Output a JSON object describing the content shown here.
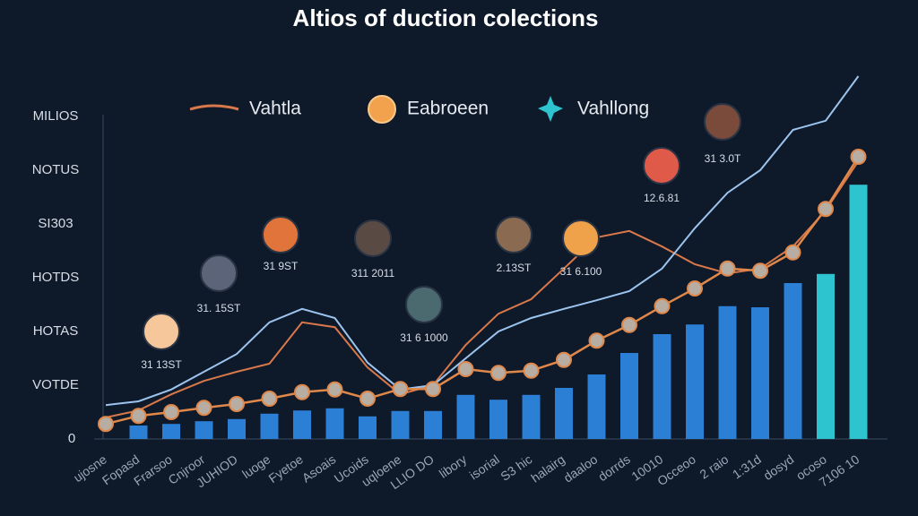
{
  "chart_data": {
    "type": "combo",
    "title": "Altios of duction colections",
    "categories": [
      "ujosne",
      "Fopasd",
      "Frarsoo",
      "Cnjroor",
      "JUHIOD",
      "luoge",
      "Fyetoe",
      "Asoais",
      "Ucoids",
      "uqloene",
      "LLIO DO",
      "libory",
      "isorial",
      "S3 hic",
      "halairg",
      "daaloo",
      "dorrds",
      "10010",
      "Occeoo",
      "2 raio",
      "1:31d",
      "dosyd",
      "ocoso",
      "7106 10"
    ],
    "ylim": [
      0,
      7
    ],
    "yticks": [
      0,
      {
        "value": 1,
        "label": "VOTDE"
      },
      {
        "value": 2,
        "label": "HOTAS"
      },
      {
        "value": 3,
        "label": "HOTDS"
      },
      {
        "value": 4,
        "label": "SI303"
      },
      {
        "value": 5,
        "label": "NOTUS"
      },
      {
        "value": 6,
        "label": "MILIOS"
      }
    ],
    "series": [
      {
        "name": "Vahllong",
        "kind": "bar",
        "color": "#2b7fd4",
        "colors": [
          "#2b7fd4",
          "#2b7fd4",
          "#2b7fd4",
          "#2b7fd4",
          "#2b7fd4",
          "#2b7fd4",
          "#2b7fd4",
          "#2b7fd4",
          "#2b7fd4",
          "#2b7fd4",
          "#2b7fd4",
          "#2b7fd4",
          "#2b7fd4",
          "#2b7fd4",
          "#2b7fd4",
          "#2b7fd4",
          "#2b7fd4",
          "#2b7fd4",
          "#2b7fd4",
          "#2b7fd4",
          "#2b7fd4",
          "#2b7fd4",
          "#2ec4cf",
          "#2ec4cf"
        ],
        "values": [
          null,
          0.25,
          0.28,
          0.33,
          0.37,
          0.47,
          0.53,
          0.57,
          0.42,
          0.52,
          0.52,
          0.82,
          0.73,
          0.82,
          0.95,
          1.2,
          1.6,
          1.95,
          2.13,
          2.47,
          2.45,
          2.9,
          3.07,
          4.73
        ]
      },
      {
        "name": "Eabroeen",
        "kind": "marker-line",
        "color": "#e0874a",
        "values": [
          0.28,
          0.43,
          0.5,
          0.58,
          0.65,
          0.75,
          0.87,
          0.92,
          0.75,
          0.93,
          0.93,
          1.3,
          1.23,
          1.27,
          1.47,
          1.83,
          2.12,
          2.47,
          2.8,
          3.17,
          3.13,
          3.47,
          4.28,
          5.25
        ]
      },
      {
        "name": "Vahtla",
        "kind": "line",
        "color": "#d9784a",
        "values": [
          0.4,
          0.53,
          0.83,
          1.08,
          1.25,
          1.4,
          2.17,
          2.08,
          1.33,
          0.83,
          1.0,
          1.75,
          2.33,
          2.6,
          3.17,
          3.75,
          3.87,
          3.58,
          3.25,
          3.08,
          3.17,
          3.58,
          4.25,
          5.17
        ]
      },
      {
        "kind": "line",
        "color": "#9cc4ee",
        "values": [
          0.63,
          0.7,
          0.92,
          1.25,
          1.58,
          2.17,
          2.42,
          2.25,
          1.42,
          0.92,
          1.0,
          1.5,
          2.0,
          2.25,
          2.42,
          2.58,
          2.75,
          3.17,
          3.92,
          4.58,
          5.0,
          5.75,
          5.92,
          6.75
        ]
      }
    ],
    "annotations": [
      "31 13ST",
      "31. 15ST",
      "31 9ST",
      "311 2011",
      "31 6 1000",
      "2.13ST",
      "31 6.100",
      "12.6.81",
      "31 3.0T"
    ]
  }
}
